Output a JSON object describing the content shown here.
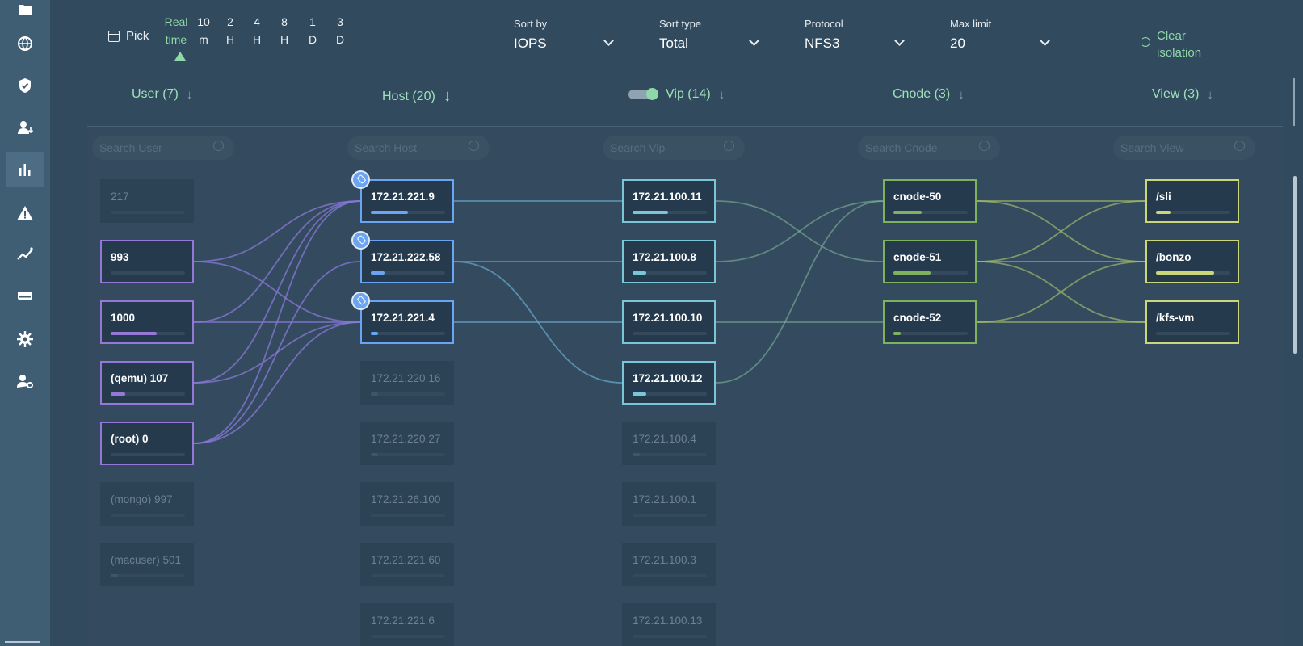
{
  "sidebar": {
    "icons": [
      "folder-icon",
      "globe-icon",
      "shield-icon",
      "user-transfer-icon",
      "bar-chart-icon",
      "warning-icon",
      "trend-icon",
      "storage-icon",
      "gear-icon",
      "user-settings-icon"
    ],
    "active": "bar-chart-icon"
  },
  "time_picker": {
    "pick_label": "Pick",
    "options": [
      {
        "line1": "Real",
        "line2": "time"
      },
      {
        "line1": "10",
        "line2": "m"
      },
      {
        "line1": "2",
        "line2": "H"
      },
      {
        "line1": "4",
        "line2": "H"
      },
      {
        "line1": "8",
        "line2": "H"
      },
      {
        "line1": "1",
        "line2": "D"
      },
      {
        "line1": "3",
        "line2": "D"
      }
    ],
    "selected": "Real time"
  },
  "filters": {
    "sort_by": {
      "label": "Sort by",
      "value": "IOPS"
    },
    "sort_type": {
      "label": "Sort type",
      "value": "Total"
    },
    "protocol": {
      "label": "Protocol",
      "value": "NFS3"
    },
    "max_limit": {
      "label": "Max limit",
      "value": "20"
    }
  },
  "clear_isolation": {
    "line1": "Clear",
    "line2": "isolation"
  },
  "columns": {
    "user": {
      "title": "User (7)",
      "search_placeholder": "Search User"
    },
    "host": {
      "title": "Host (20)",
      "search_placeholder": "Search Host"
    },
    "vip": {
      "title": "Vip (14)",
      "search_placeholder": "Search Vip"
    },
    "cnode": {
      "title": "Cnode (3)",
      "search_placeholder": "Search Cnode"
    },
    "view": {
      "title": "View (3)",
      "search_placeholder": "Search View"
    }
  },
  "nodes": {
    "users": [
      {
        "label": "217",
        "active": false,
        "level": 0
      },
      {
        "label": "993",
        "active": true,
        "level": 0
      },
      {
        "label": "1000",
        "active": true,
        "level": 0.62
      },
      {
        "label": "(qemu) 107",
        "active": true,
        "level": 0.2
      },
      {
        "label": "(root) 0",
        "active": true,
        "level": 0
      },
      {
        "label": "(mongo) 997",
        "active": false,
        "level": 0
      },
      {
        "label": "(macuser) 501",
        "active": false,
        "level": 0.1
      }
    ],
    "hosts": [
      {
        "label": "172.21.221.9",
        "active": true,
        "level": 0.5,
        "pinned": true
      },
      {
        "label": "172.21.222.58",
        "active": true,
        "level": 0.18,
        "pinned": true
      },
      {
        "label": "172.21.221.4",
        "active": true,
        "level": 0.1,
        "pinned": true
      },
      {
        "label": "172.21.220.16",
        "active": false,
        "level": 0.1
      },
      {
        "label": "172.21.220.27",
        "active": false,
        "level": 0.1
      },
      {
        "label": "172.21.26.100",
        "active": false,
        "level": 0
      },
      {
        "label": "172.21.221.60",
        "active": false,
        "level": 0
      },
      {
        "label": "172.21.221.6",
        "active": false,
        "level": 0
      }
    ],
    "vips": [
      {
        "label": "172.21.100.11",
        "active": true,
        "level": 0.48
      },
      {
        "label": "172.21.100.8",
        "active": true,
        "level": 0.18
      },
      {
        "label": "172.21.100.10",
        "active": true,
        "level": 0
      },
      {
        "label": "172.21.100.12",
        "active": true,
        "level": 0.18
      },
      {
        "label": "172.21.100.4",
        "active": false,
        "level": 0.1
      },
      {
        "label": "172.21.100.1",
        "active": false,
        "level": 0
      },
      {
        "label": "172.21.100.3",
        "active": false,
        "level": 0
      },
      {
        "label": "172.21.100.13",
        "active": false,
        "level": 0
      }
    ],
    "cnodes": [
      {
        "label": "cnode-50",
        "active": true,
        "level": 0.38
      },
      {
        "label": "cnode-51",
        "active": true,
        "level": 0.5
      },
      {
        "label": "cnode-52",
        "active": true,
        "level": 0.1
      }
    ],
    "views": [
      {
        "label": "/sli",
        "active": true,
        "level": 0.2
      },
      {
        "label": "/bonzo",
        "active": true,
        "level": 0.78
      },
      {
        "label": "/kfs-vm",
        "active": true,
        "level": 0
      }
    ]
  },
  "links": {
    "user_host": [
      [
        1,
        0
      ],
      [
        1,
        2
      ],
      [
        2,
        0
      ],
      [
        2,
        2
      ],
      [
        3,
        0
      ],
      [
        3,
        2
      ],
      [
        4,
        0
      ],
      [
        4,
        1
      ],
      [
        4,
        2
      ]
    ],
    "host_vip": [
      [
        0,
        0
      ],
      [
        1,
        1
      ],
      [
        1,
        3
      ],
      [
        2,
        2
      ]
    ],
    "vip_cnode": [
      [
        0,
        1
      ],
      [
        1,
        0
      ],
      [
        2,
        2
      ],
      [
        3,
        0
      ]
    ],
    "cnode_view": [
      [
        0,
        0
      ],
      [
        0,
        1
      ],
      [
        1,
        0
      ],
      [
        1,
        1
      ],
      [
        1,
        2
      ],
      [
        2,
        1
      ],
      [
        2,
        2
      ]
    ]
  }
}
